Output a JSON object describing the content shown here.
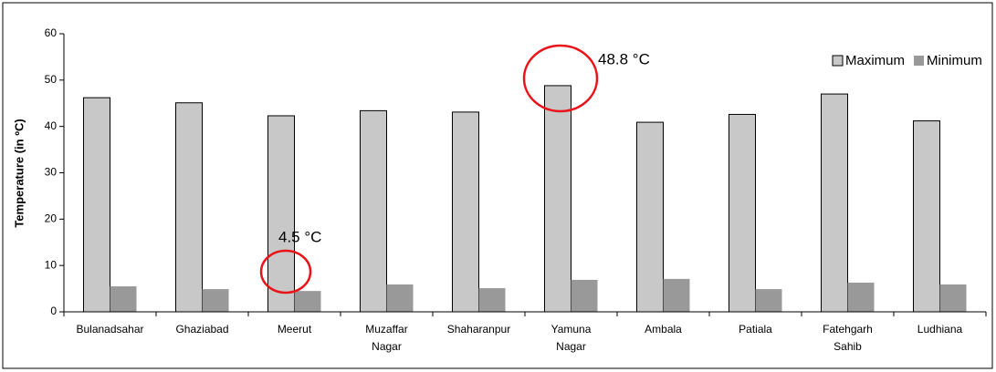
{
  "chart_data": {
    "type": "bar",
    "y_label": "Temperature (in ºC)",
    "categories": [
      "Bulanadsahar",
      "Ghaziabad",
      "Meerut",
      "Muzaffar\nNagar",
      "Shaharanpur",
      "Yamuna\nNagar",
      "Ambala",
      "Patiala",
      "Fatehgarh\nSahib",
      "Ludhiana"
    ],
    "series": [
      {
        "name": "Maximum",
        "color": "#c8c8c8",
        "values": [
          46.2,
          45.1,
          42.3,
          43.4,
          43.1,
          48.8,
          40.9,
          42.6,
          47.0,
          41.2
        ]
      },
      {
        "name": "Minimum",
        "color": "#999999",
        "values": [
          5.5,
          4.9,
          4.5,
          5.9,
          5.1,
          6.9,
          7.1,
          4.9,
          6.3,
          5.9
        ]
      }
    ],
    "annotations": [
      "48.8 °C",
      "4.5 °C"
    ],
    "ylim": [
      0,
      60
    ],
    "yticks": [
      0,
      10,
      20,
      30,
      40,
      50,
      60
    ],
    "legend": "top-right"
  }
}
